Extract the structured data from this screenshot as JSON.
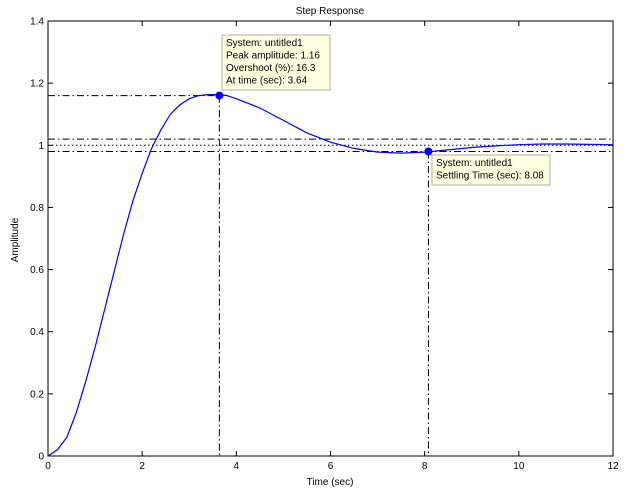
{
  "chart_data": {
    "type": "line",
    "title": "Step Response",
    "xlabel": "Time (sec)",
    "ylabel": "Amplitude",
    "xlim": [
      0,
      12
    ],
    "ylim": [
      0,
      1.4
    ],
    "xticks": [
      0,
      2,
      4,
      6,
      8,
      10,
      12
    ],
    "yticks": [
      0,
      0.2,
      0.4,
      0.6,
      0.8,
      1,
      1.2,
      1.4
    ],
    "grid": false,
    "line_color": "#0000ff",
    "series": [
      {
        "x": [
          0,
          0.2,
          0.4,
          0.6,
          0.8,
          1.0,
          1.2,
          1.4,
          1.6,
          1.8,
          2.0,
          2.2,
          2.4,
          2.6,
          2.8,
          3.0,
          3.2,
          3.4,
          3.64,
          3.8,
          4.0,
          4.5,
          5.0,
          5.5,
          6.0,
          6.5,
          7.0,
          7.5,
          8.0,
          8.5,
          9.0,
          9.5,
          10.0,
          10.5,
          11.0,
          11.5,
          12.0
        ],
        "y": [
          0,
          0.02,
          0.06,
          0.14,
          0.24,
          0.35,
          0.47,
          0.59,
          0.71,
          0.82,
          0.91,
          0.99,
          1.05,
          1.1,
          1.13,
          1.15,
          1.16,
          1.163,
          1.163,
          1.16,
          1.15,
          1.12,
          1.08,
          1.04,
          1.01,
          0.99,
          0.978,
          0.975,
          0.978,
          0.985,
          0.993,
          0.998,
          1.002,
          1.004,
          1.004,
          1.003,
          1.002
        ]
      }
    ],
    "steady_state": 1,
    "settling_band": [
      0.98,
      1.02
    ],
    "annotations": {
      "peak": {
        "x": 3.64,
        "y": 1.16,
        "lines": [
          "System: untitled1",
          "Peak amplitude: 1.16",
          "Overshoot (%): 16.3",
          "At time (sec): 3.64"
        ]
      },
      "settling": {
        "x": 8.08,
        "y": 0.98,
        "lines": [
          "System: untitled1",
          "Settling Time (sec): 8.08"
        ]
      }
    },
    "annotation_bg": "#ffffe1"
  }
}
